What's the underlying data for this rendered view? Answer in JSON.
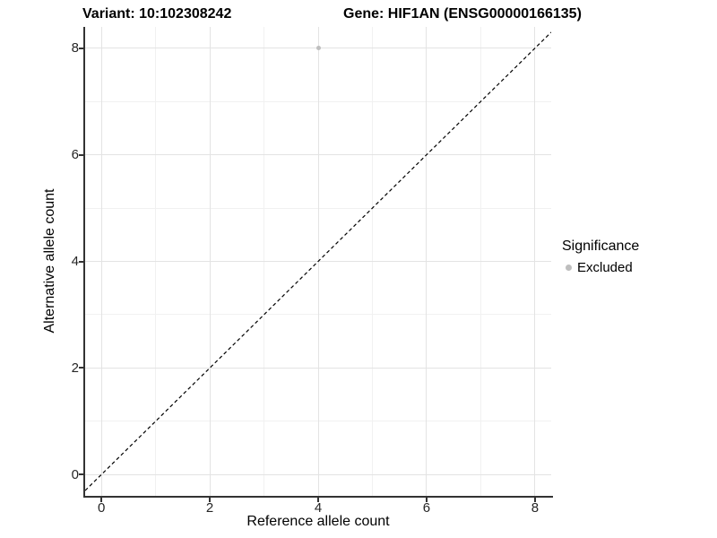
{
  "header": {
    "variant_title": "Variant: 10:102308242",
    "gene_title": "Gene: HIF1AN (ENSG00000166135)"
  },
  "colors": {
    "point": "#bebebe",
    "grid_major": "#e3e3e3",
    "grid_minor": "#f1f1f1",
    "axis": "#333333",
    "identity_line": "#000000",
    "tick_text": "#262626"
  },
  "chart_data": {
    "type": "scatter",
    "title": "Variant: 10:102308242    Gene: HIF1AN (ENSG00000166135)",
    "xlabel": "Reference allele count",
    "ylabel": "Alternative allele count",
    "xlim": [
      -0.3,
      8.3
    ],
    "ylim": [
      -0.4,
      8.4
    ],
    "xticks": [
      0,
      2,
      4,
      6,
      8
    ],
    "yticks": [
      0,
      2,
      4,
      6,
      8
    ],
    "minor_xticks": [
      1,
      3,
      5,
      7
    ],
    "minor_yticks": [
      1,
      3,
      5,
      7
    ],
    "grid": true,
    "abline": {
      "slope": 1,
      "intercept": 0,
      "linetype": "dashed",
      "color": "#000000"
    },
    "series": [
      {
        "name": "Excluded",
        "color": "#bebebe",
        "points": [
          {
            "x": 4,
            "y": 8
          }
        ]
      }
    ],
    "legend": {
      "title": "Significance",
      "position": "right",
      "items": [
        {
          "label": "Excluded",
          "color": "#bebebe"
        }
      ]
    }
  }
}
